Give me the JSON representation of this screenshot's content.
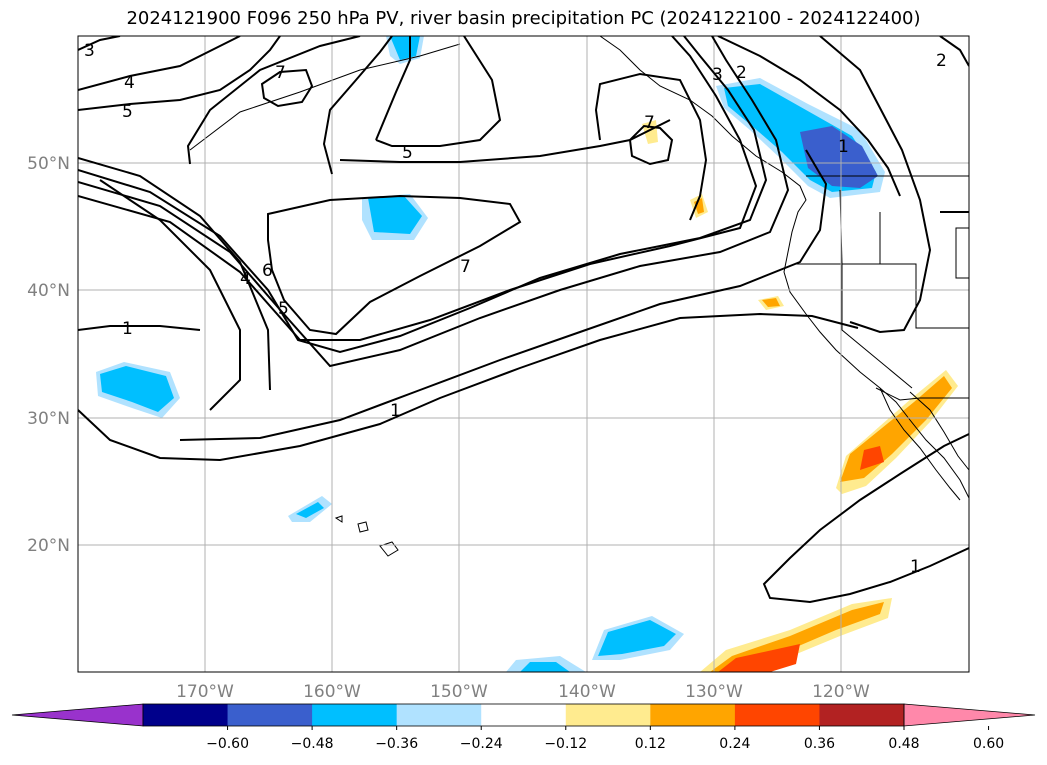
{
  "title": "2024121900 F096 250 hPa PV, river basin precipitation PC (2024122100 - 2024122400)",
  "chart_data": {
    "type": "contour-map",
    "title": "2024121900 F096 250 hPa PV, river basin precipitation PC (2024122100 - 2024122400)",
    "projection": "PlateCarree",
    "lon_range": [
      -180,
      -110
    ],
    "lat_range": [
      10,
      60
    ],
    "grid": true,
    "lat_ticks": [
      "20°N",
      "30°N",
      "40°N",
      "50°N"
    ],
    "lon_ticks": [
      "170°W",
      "160°W",
      "150°W",
      "140°W",
      "130°W",
      "120°W"
    ],
    "pv_contour_levels": [
      1,
      2,
      3,
      4,
      5,
      6,
      7
    ],
    "pv_contour_labels_shown": [
      "3",
      "4",
      "5",
      "7",
      "5",
      "7",
      "3",
      "2",
      "1",
      "6",
      "4",
      "5",
      "7",
      "1",
      "1",
      "1",
      "2"
    ],
    "colorbar": {
      "ticks": [
        "−0.60",
        "−0.48",
        "−0.36",
        "−0.24",
        "−0.12",
        "0.12",
        "0.24",
        "0.36",
        "0.48",
        "0.60"
      ],
      "colors": [
        "#9932cc",
        "#00008b",
        "#3a5fcd",
        "#00bfff",
        "#b0e2ff",
        "#ffffff",
        "#ffeb8f",
        "#ffa500",
        "#ff4500",
        "#b22222",
        "#ff88aa"
      ],
      "extend": "both"
    }
  }
}
